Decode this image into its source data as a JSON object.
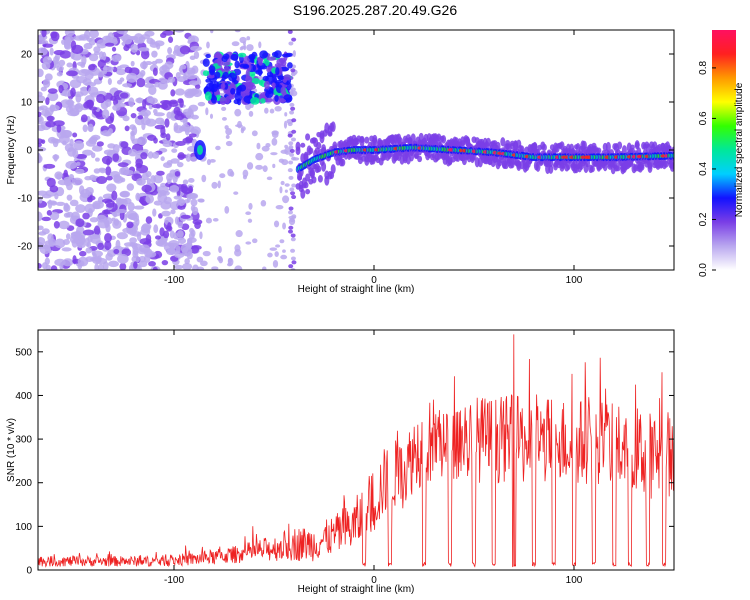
{
  "chart_data": [
    {
      "type": "heatmap",
      "title": "S196.2025.287.20.49.G26",
      "xlabel": "Height of straight line (km)",
      "ylabel": "Frequency (Hz)",
      "xlim": [
        -168,
        150
      ],
      "ylim": [
        -25,
        25
      ],
      "xticks": [
        -100,
        0,
        100
      ],
      "xtick_labels": [
        "-100",
        "0",
        "100"
      ],
      "yticks": [
        20,
        10,
        0,
        -10,
        -20
      ],
      "ytick_labels": [
        "20",
        "10",
        "0",
        "-10",
        "-20"
      ],
      "colorbar": {
        "label": "Normalized spectral amplitude",
        "range": [
          0,
          0.95
        ],
        "ticks": [
          0.0,
          0.2,
          0.4,
          0.6,
          0.8
        ],
        "tick_labels": [
          "0.0",
          "0.2",
          "0.4",
          "0.6",
          "0.8"
        ],
        "colors": [
          "#ffffff",
          "#b9a7ef",
          "#7a3ee6",
          "#1212ff",
          "#00cfff",
          "#00e89a",
          "#33ff00",
          "#ffff00",
          "#ff9900",
          "#ff2020",
          "#ff1060"
        ]
      },
      "features": {
        "noise_region_x": [
          -168,
          -88
        ],
        "blob_x": -87,
        "blob_freq_hz": 0,
        "band_upper_x": [
          -84,
          -42
        ],
        "band_upper_freq_hz": [
          10,
          20
        ],
        "line_start_x": -38,
        "line_end_x": 150,
        "line_freq_hz": [
          [
            -38,
            -4
          ],
          [
            -30,
            -2
          ],
          [
            -20,
            -0.5
          ],
          [
            -10,
            0
          ],
          [
            0,
            0
          ],
          [
            20,
            0.5
          ],
          [
            40,
            0
          ],
          [
            60,
            -0.5
          ],
          [
            80,
            -1.5
          ],
          [
            100,
            -1.5
          ],
          [
            120,
            -1.5
          ],
          [
            150,
            -1.2
          ]
        ]
      }
    },
    {
      "type": "line",
      "title": "",
      "xlabel": "Height of straight line (km)",
      "ylabel": "SNR (10 * v/v)",
      "xlim": [
        -168,
        150
      ],
      "ylim": [
        0,
        550
      ],
      "xticks": [
        -100,
        0,
        100
      ],
      "xtick_labels": [
        "-100",
        "0",
        "100"
      ],
      "yticks": [
        0,
        100,
        200,
        300,
        400,
        500
      ],
      "ytick_labels": [
        "0",
        "100",
        "200",
        "300",
        "400",
        "500"
      ],
      "series": [
        {
          "name": "SNR",
          "color": "#ee2222",
          "envelope_x": [
            -168,
            -140,
            -110,
            -90,
            -70,
            -50,
            -40,
            -30,
            -20,
            -10,
            -5,
            0,
            5,
            10,
            15,
            20,
            30,
            40,
            50,
            60,
            70,
            80,
            90,
            100,
            110,
            120,
            130,
            140,
            150
          ],
          "envelope_mean": [
            20,
            20,
            20,
            25,
            35,
            50,
            60,
            60,
            80,
            100,
            130,
            160,
            200,
            220,
            220,
            270,
            300,
            300,
            300,
            300,
            300,
            290,
            300,
            290,
            300,
            280,
            280,
            260,
            270
          ],
          "envelope_spread": [
            12,
            12,
            12,
            15,
            20,
            30,
            40,
            40,
            45,
            60,
            70,
            80,
            80,
            80,
            80,
            90,
            100,
            100,
            100,
            100,
            100,
            100,
            100,
            100,
            100,
            100,
            100,
            100,
            100
          ],
          "peak": {
            "x": 70,
            "y": 540
          },
          "dropouts_x": [
            -5,
            8,
            25,
            38,
            50,
            60,
            70,
            80,
            90,
            100,
            110,
            120,
            128,
            137,
            145
          ]
        }
      ]
    }
  ]
}
